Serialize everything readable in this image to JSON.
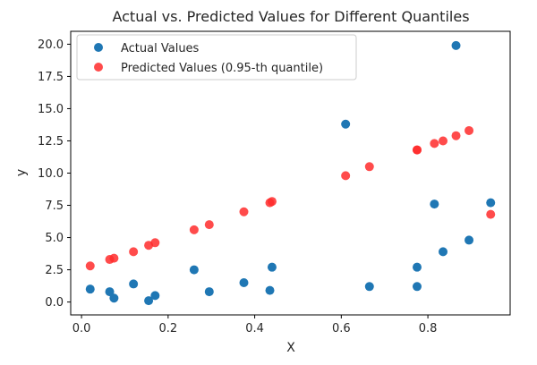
{
  "chart_data": {
    "type": "scatter",
    "title": "Actual vs. Predicted Values for Different Quantiles",
    "xlabel": "X",
    "ylabel": "y",
    "xlim": [
      -0.025,
      0.99
    ],
    "ylim": [
      -1.0,
      21.0
    ],
    "xticks": [
      0.0,
      0.2,
      0.4,
      0.6,
      0.8
    ],
    "xtick_labels": [
      "0.0",
      "0.2",
      "0.4",
      "0.6",
      "0.8"
    ],
    "yticks": [
      0.0,
      2.5,
      5.0,
      7.5,
      10.0,
      12.5,
      15.0,
      17.5,
      20.0
    ],
    "ytick_labels": [
      "0.0",
      "2.5",
      "5.0",
      "7.5",
      "10.0",
      "12.5",
      "15.0",
      "17.5",
      "20.0"
    ],
    "grid": false,
    "legend_position": "top-left",
    "series": [
      {
        "name": "Actual Values",
        "color": "#1f77b4",
        "points": [
          [
            0.02,
            1.0
          ],
          [
            0.065,
            0.8
          ],
          [
            0.075,
            0.3
          ],
          [
            0.12,
            1.4
          ],
          [
            0.155,
            0.1
          ],
          [
            0.17,
            0.5
          ],
          [
            0.26,
            2.5
          ],
          [
            0.295,
            0.8
          ],
          [
            0.375,
            1.5
          ],
          [
            0.435,
            0.9
          ],
          [
            0.44,
            2.7
          ],
          [
            0.61,
            13.8
          ],
          [
            0.665,
            1.2
          ],
          [
            0.775,
            2.7
          ],
          [
            0.775,
            1.2
          ],
          [
            0.815,
            7.6
          ],
          [
            0.835,
            3.9
          ],
          [
            0.865,
            19.9
          ],
          [
            0.895,
            4.8
          ],
          [
            0.945,
            7.7
          ]
        ]
      },
      {
        "name": "Predicted Values (0.95-th quantile)",
        "color": "#ff2b2b",
        "points": [
          [
            0.02,
            2.8
          ],
          [
            0.065,
            3.3
          ],
          [
            0.075,
            3.4
          ],
          [
            0.12,
            3.9
          ],
          [
            0.155,
            4.4
          ],
          [
            0.17,
            4.6
          ],
          [
            0.26,
            5.6
          ],
          [
            0.295,
            6.0
          ],
          [
            0.375,
            7.0
          ],
          [
            0.435,
            7.7
          ],
          [
            0.44,
            7.8
          ],
          [
            0.61,
            9.8
          ],
          [
            0.665,
            10.5
          ],
          [
            0.775,
            11.8
          ],
          [
            0.775,
            11.8
          ],
          [
            0.815,
            12.3
          ],
          [
            0.835,
            12.5
          ],
          [
            0.865,
            12.9
          ],
          [
            0.895,
            13.3
          ],
          [
            0.945,
            6.8
          ]
        ]
      }
    ]
  }
}
